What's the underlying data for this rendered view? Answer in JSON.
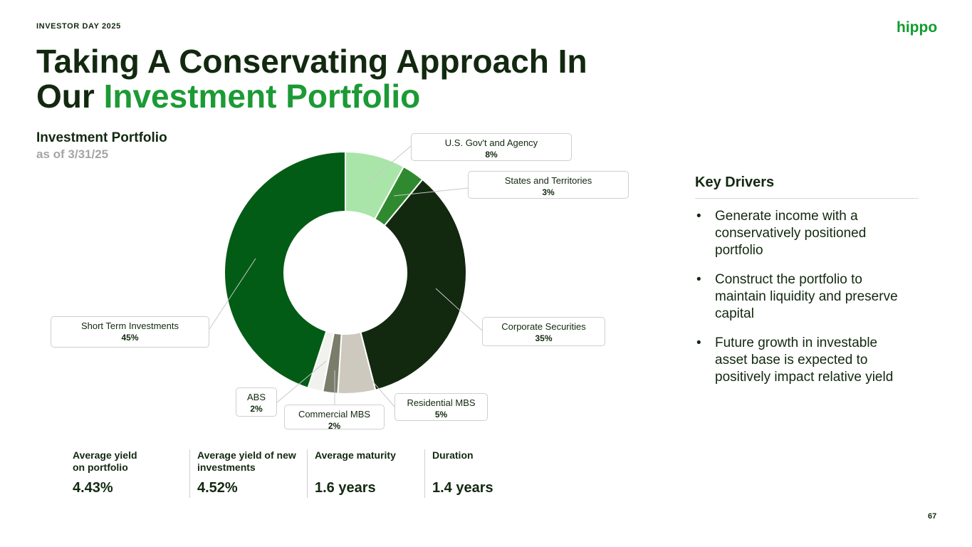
{
  "header": {
    "event": "INVESTOR DAY 2025",
    "logo": "hippo",
    "title_plain": "Taking A Conservating Approach In Our",
    "title_highlight": "Investment Portfolio"
  },
  "chart_data": {
    "type": "pie",
    "title": "Investment Portfolio",
    "subtitle": "as of 3/31/25",
    "categories": [
      "U.S. Gov't and Agency",
      "States and Territories",
      "Corporate Securities",
      "Residential MBS",
      "Commercial MBS",
      "ABS",
      "Short Term Investments"
    ],
    "values": [
      8,
      3,
      35,
      5,
      2,
      2,
      45
    ],
    "value_labels": [
      "8%",
      "3%",
      "35%",
      "5%",
      "2%",
      "2%",
      "45%"
    ],
    "colors": [
      "#a9e5a9",
      "#2f8a2f",
      "#12290f",
      "#cdc9bf",
      "#7b7d6b",
      "#f1f1ed",
      "#035c15"
    ]
  },
  "key_drivers": {
    "title": "Key Drivers",
    "items": [
      "Generate income with a conservatively positioned portfolio",
      "Construct the portfolio to maintain liquidity and preserve capital",
      "Future growth in investable asset base is expected to positively impact relative yield"
    ]
  },
  "stats": [
    {
      "label": "Average yield on portfolio",
      "value": "4.43%"
    },
    {
      "label": "Average yield of new investments",
      "value": "4.52%"
    },
    {
      "label": "Average maturity",
      "value": "1.6 years"
    },
    {
      "label": "Duration",
      "value": "1.4 years"
    }
  ],
  "page_number": "67"
}
